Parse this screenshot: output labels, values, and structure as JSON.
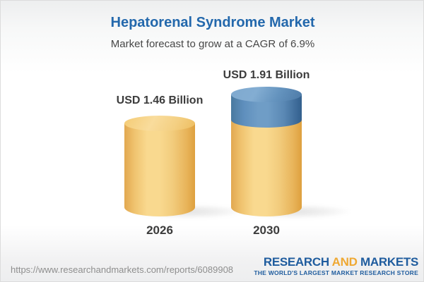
{
  "header": {
    "title": "Hepatorenal Syndrome Market",
    "subtitle": "Market forecast to grow at a CAGR of 6.9%"
  },
  "chart_data": {
    "type": "bar",
    "style": "3d-cylinder",
    "title": "Hepatorenal Syndrome Market",
    "subtitle": "Market forecast to grow at a CAGR of 6.9%",
    "categories": [
      "2026",
      "2030"
    ],
    "values": [
      1.46,
      1.91
    ],
    "unit": "USD Billion",
    "value_labels": [
      "USD 1.46 Billion",
      "USD 1.91 Billion"
    ],
    "cagr_percent": 6.9,
    "ylim": [
      0,
      2
    ],
    "grid": false,
    "legend": false,
    "colors": {
      "bar_fill": "#f3cd7e",
      "growth_segment_fill": "#6f9dc6",
      "title_text": "#2368ac",
      "label_text": "#3c3c3c"
    }
  },
  "bars": [
    {
      "value_label": "USD 1.46 Billion",
      "year": "2026"
    },
    {
      "value_label": "USD 1.91 Billion",
      "year": "2030"
    }
  ],
  "footer": {
    "report_url": "https://www.researchandmarkets.com/reports/6089908",
    "logo": {
      "word1": "RESEARCH",
      "word2": "AND",
      "word3": "MARKETS",
      "tagline": "THE WORLD'S LARGEST MARKET RESEARCH STORE",
      "brand_blue": "#1f5c9e",
      "brand_orange": "#efa832"
    }
  }
}
